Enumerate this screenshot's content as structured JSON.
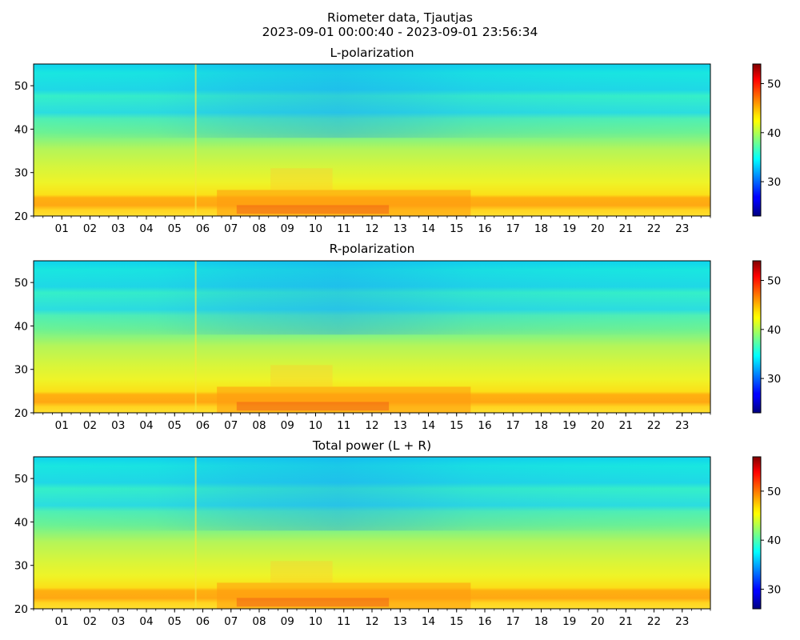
{
  "figure": {
    "title_line1": "Riometer data, Tjautjas",
    "title_line2": "2023-09-01 00:00:40 - 2023-09-01 23:56:34"
  },
  "chart_data": [
    {
      "type": "heatmap",
      "title": "L-polarization",
      "xlim": [
        0,
        24
      ],
      "ylim": [
        20,
        55
      ],
      "x_tick_labels": [
        "01",
        "02",
        "03",
        "04",
        "05",
        "06",
        "07",
        "08",
        "09",
        "10",
        "11",
        "12",
        "13",
        "14",
        "15",
        "16",
        "17",
        "18",
        "19",
        "20",
        "21",
        "22",
        "23"
      ],
      "y_ticks": [
        20,
        30,
        40,
        50
      ],
      "colorbar": {
        "colormap": "jet",
        "range": [
          23,
          54
        ],
        "ticks": [
          30,
          40,
          50
        ]
      }
    },
    {
      "type": "heatmap",
      "title": "R-polarization",
      "xlim": [
        0,
        24
      ],
      "ylim": [
        20,
        55
      ],
      "x_tick_labels": [
        "01",
        "02",
        "03",
        "04",
        "05",
        "06",
        "07",
        "08",
        "09",
        "10",
        "11",
        "12",
        "13",
        "14",
        "15",
        "16",
        "17",
        "18",
        "19",
        "20",
        "21",
        "22",
        "23"
      ],
      "y_ticks": [
        20,
        30,
        40,
        50
      ],
      "colorbar": {
        "colormap": "jet",
        "range": [
          23,
          54
        ],
        "ticks": [
          30,
          40,
          50
        ]
      }
    },
    {
      "type": "heatmap",
      "title": "Total power (L + R)",
      "xlim": [
        0,
        24
      ],
      "ylim": [
        20,
        55
      ],
      "x_tick_labels": [
        "01",
        "02",
        "03",
        "04",
        "05",
        "06",
        "07",
        "08",
        "09",
        "10",
        "11",
        "12",
        "13",
        "14",
        "15",
        "16",
        "17",
        "18",
        "19",
        "20",
        "21",
        "22",
        "23"
      ],
      "y_ticks": [
        20,
        30,
        40,
        50
      ],
      "colorbar": {
        "colormap": "jet",
        "range": [
          26,
          57
        ],
        "ticks": [
          30,
          40,
          50
        ]
      }
    }
  ]
}
